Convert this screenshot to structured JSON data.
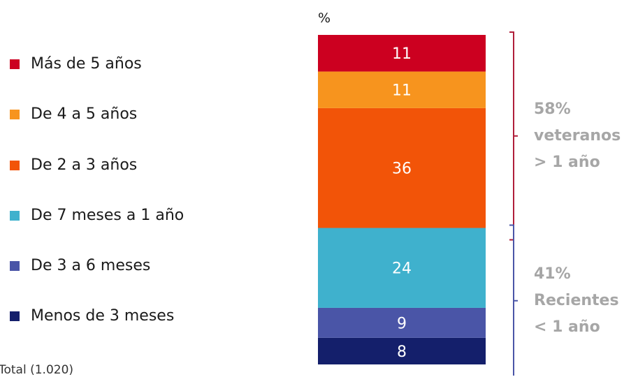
{
  "chart_data": {
    "type": "bar",
    "stacked": true,
    "unit_label": "%",
    "series": [
      {
        "name": "Menos de 3 meses",
        "value": 8,
        "color": "#141f6b"
      },
      {
        "name": "De 3 a 6 meses",
        "value": 9,
        "color": "#4a55a7"
      },
      {
        "name": "De 7 meses a 1 año",
        "value": 24,
        "color": "#3fb1cd"
      },
      {
        "name": "De 2 a 3 años",
        "value": 36,
        "color": "#f25408"
      },
      {
        "name": "De 4 a 5 años",
        "value": 11,
        "color": "#f7941e"
      },
      {
        "name": "Más de 5 años",
        "value": 11,
        "color": "#cc0020"
      }
    ],
    "groups": [
      {
        "lines": [
          "58%",
          "veteranos",
          "> 1 año"
        ],
        "from_segment": 3,
        "to_segment": 5,
        "bracket_color": "#b01e3a"
      },
      {
        "lines": [
          "41%",
          "Recientes",
          "< 1 año"
        ],
        "from_segment": 0,
        "to_segment": 2,
        "bracket_color": "#4a55a7"
      }
    ]
  },
  "legend_order": [
    5,
    4,
    3,
    2,
    1,
    0
  ],
  "base_note": "Total (1.020)"
}
